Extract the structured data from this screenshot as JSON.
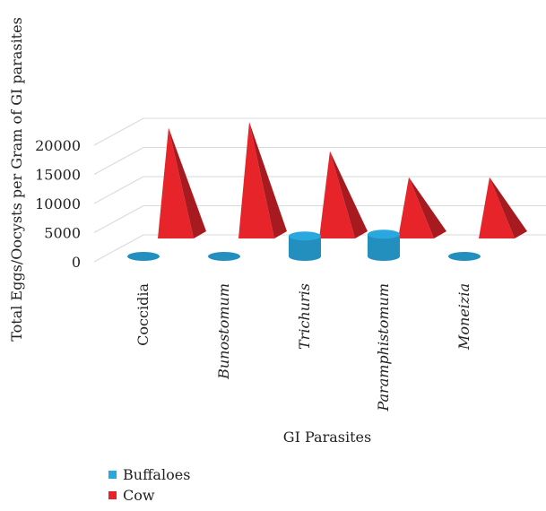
{
  "chart_data": {
    "type": "bar",
    "title": "",
    "xlabel": "GI Parasites",
    "ylabel": "Total Eggs/Oocysts per Gram of GI parasites",
    "categories": [
      "Coccidia",
      "Bunostomum",
      "Trichuris",
      "Paramphistomum",
      "Moneizia"
    ],
    "italic_categories": [
      false,
      true,
      true,
      true,
      true
    ],
    "ylim": [
      0,
      20000
    ],
    "yticks": [
      0,
      5000,
      10000,
      15000,
      20000
    ],
    "grid": true,
    "legend_position": "bottom-left",
    "series": [
      {
        "name": "Buffaloes",
        "color": "#29a8e0",
        "shape": "cylinder",
        "values": [
          0,
          0,
          3500,
          3800,
          0
        ]
      },
      {
        "name": "Cow",
        "color": "#e8242b",
        "shape": "pyramid",
        "values": [
          19000,
          20000,
          15000,
          10500,
          10500
        ]
      }
    ]
  }
}
